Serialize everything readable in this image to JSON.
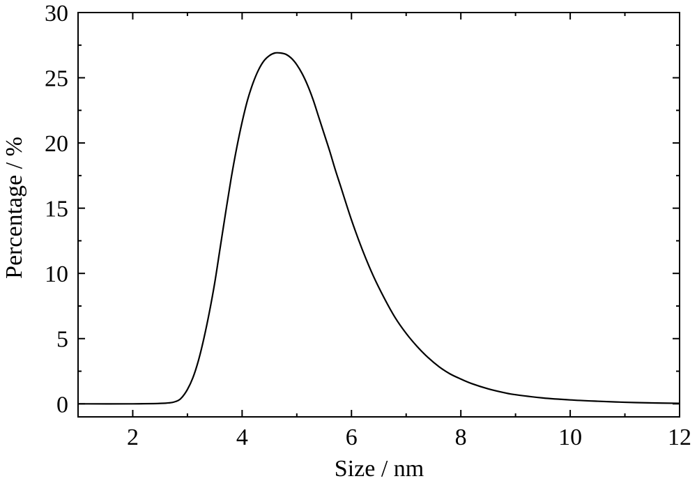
{
  "chart_data": {
    "type": "line",
    "title": "",
    "xlabel": "Size / nm",
    "ylabel": "Percentage / %",
    "xlim": [
      1,
      12
    ],
    "ylim": [
      -1,
      30
    ],
    "x_ticks": [
      2,
      4,
      6,
      8,
      10,
      12
    ],
    "x_tick_labels": [
      "2",
      "4",
      "6",
      "8",
      "10",
      "12"
    ],
    "y_ticks": [
      0,
      5,
      10,
      15,
      20,
      25,
      30
    ],
    "y_tick_labels": [
      "0",
      "5",
      "10",
      "15",
      "20",
      "25",
      "30"
    ],
    "grid": false,
    "legend": "none",
    "line_color": "#000000",
    "series": [
      {
        "x": [
          1.0,
          2.0,
          2.6,
          2.8,
          2.9,
          3.0,
          3.1,
          3.2,
          3.3,
          3.4,
          3.5,
          3.6,
          3.7,
          3.8,
          3.9,
          4.0,
          4.1,
          4.2,
          4.3,
          4.4,
          4.5,
          4.6,
          4.7,
          4.8,
          4.9,
          5.0,
          5.1,
          5.2,
          5.3,
          5.4,
          5.5,
          5.6,
          5.7,
          5.8,
          6.0,
          6.2,
          6.4,
          6.6,
          6.8,
          7.0,
          7.2,
          7.4,
          7.6,
          7.8,
          8.0,
          8.2,
          8.5,
          8.8,
          9.0,
          9.5,
          10.0,
          10.5,
          11.0,
          11.5,
          12.0
        ],
        "y": [
          0.0,
          0.0,
          0.05,
          0.2,
          0.5,
          1.1,
          2.0,
          3.3,
          5.0,
          7.0,
          9.3,
          12.0,
          14.7,
          17.3,
          19.6,
          21.6,
          23.3,
          24.6,
          25.6,
          26.3,
          26.7,
          26.9,
          26.9,
          26.8,
          26.5,
          26.0,
          25.3,
          24.4,
          23.3,
          22.0,
          20.7,
          19.4,
          18.0,
          16.7,
          14.1,
          11.8,
          9.8,
          8.1,
          6.6,
          5.4,
          4.4,
          3.55,
          2.85,
          2.3,
          1.9,
          1.55,
          1.15,
          0.85,
          0.7,
          0.45,
          0.3,
          0.2,
          0.12,
          0.07,
          0.04
        ]
      }
    ]
  }
}
